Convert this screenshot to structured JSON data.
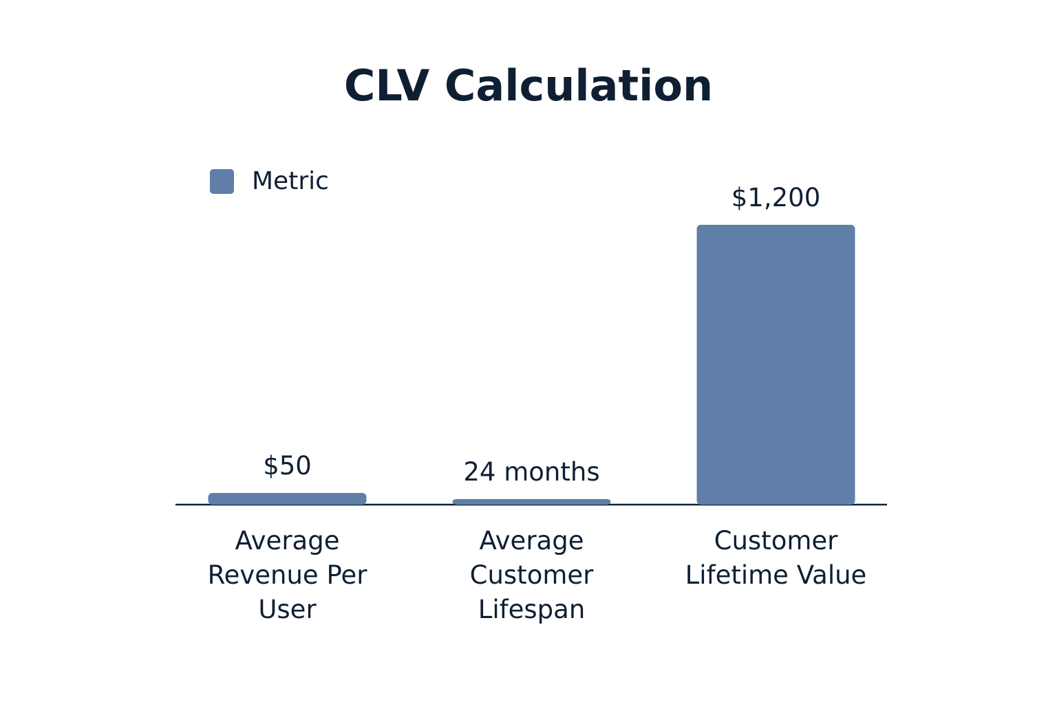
{
  "chart_data": {
    "type": "bar",
    "title": "CLV Calculation",
    "categories": [
      "Average Revenue Per User",
      "Average Customer Lifespan",
      "Customer Lifetime Value"
    ],
    "series": [
      {
        "name": "Metric",
        "color": "#5f7ea8",
        "values": [
          50,
          24,
          1200
        ],
        "value_labels": [
          "$50",
          "24 months",
          "$1,200"
        ]
      }
    ],
    "legend": "top-left"
  }
}
